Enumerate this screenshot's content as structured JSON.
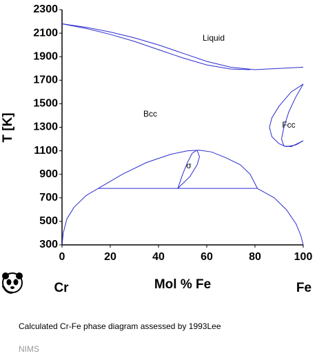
{
  "chart_data": {
    "type": "line",
    "xlabel": "Mol % Fe",
    "ylabel": "T [K]",
    "x_end_labels": [
      "Cr",
      "Fe"
    ],
    "annotations": [
      "Liquid",
      "Bcc",
      "Fcc",
      "σ"
    ],
    "color": "#2a2ad0",
    "xlim": [
      0,
      100
    ],
    "xticks": [
      0,
      20,
      40,
      60,
      80,
      100
    ],
    "ylim": [
      300,
      2300
    ],
    "yticks": [
      300,
      500,
      700,
      900,
      1100,
      1300,
      1500,
      1700,
      1900,
      2100,
      2300
    ],
    "series": [
      {
        "x": [
          0,
          10,
          20,
          30,
          40,
          50,
          60,
          70,
          80,
          90,
          100
        ],
        "values": [
          2180,
          2150,
          2110,
          2060,
          2000,
          1930,
          1860,
          1810,
          1790,
          1800,
          1811
        ]
      },
      {
        "x": [
          0,
          10,
          20,
          30,
          40,
          50,
          60,
          70,
          78
        ],
        "values": [
          2180,
          2140,
          2090,
          2030,
          1960,
          1890,
          1830,
          1795,
          1790
        ]
      },
      {
        "x": [
          100,
          95,
          90,
          87,
          86,
          87,
          90,
          93,
          97,
          100
        ],
        "values": [
          1667,
          1600,
          1480,
          1380,
          1300,
          1220,
          1160,
          1135,
          1150,
          1185
        ]
      },
      {
        "x": [
          100,
          97,
          94,
          92,
          91,
          92,
          95,
          100
        ],
        "values": [
          1667,
          1560,
          1430,
          1300,
          1200,
          1140,
          1135,
          1185
        ]
      },
      {
        "x": [
          15,
          25,
          35,
          45,
          52,
          57,
          62,
          68,
          74,
          78,
          81
        ],
        "values": [
          780,
          900,
          1000,
          1070,
          1100,
          1105,
          1090,
          1040,
          980,
          900,
          780
        ]
      },
      {
        "x": [
          48,
          50,
          52,
          54,
          56
        ],
        "values": [
          780,
          900,
          1000,
          1080,
          1105
        ]
      },
      {
        "x": [
          48,
          53,
          56,
          57,
          56
        ],
        "values": [
          780,
          880,
          980,
          1050,
          1105
        ]
      },
      {
        "x": [
          15,
          81
        ],
        "values": [
          780,
          780
        ]
      },
      {
        "x": [
          0,
          0.5,
          2,
          5,
          10,
          15
        ],
        "values": [
          300,
          400,
          520,
          620,
          720,
          780
        ]
      },
      {
        "x": [
          81,
          88,
          93,
          97,
          99,
          100
        ],
        "values": [
          780,
          700,
          600,
          480,
          380,
          300
        ]
      }
    ]
  },
  "caption": "Calculated Cr-Fe phase diagram assessed by 1993Lee",
  "source": "NIMS"
}
